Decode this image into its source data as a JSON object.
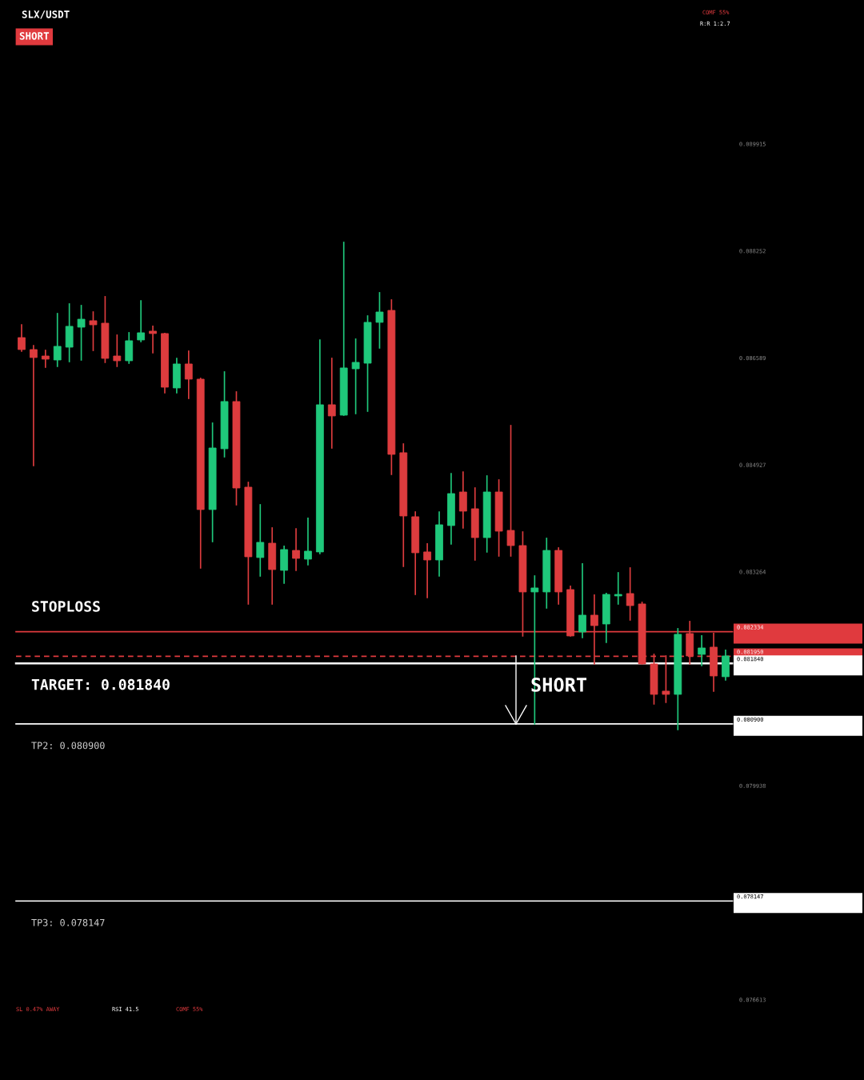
{
  "chart_data": {
    "type": "candlestick",
    "title": "SLX/USDT",
    "categories": [
      null,
      null,
      null,
      null,
      null,
      null,
      null,
      null,
      null,
      null,
      null,
      null,
      null,
      null,
      null,
      null,
      null,
      null,
      null,
      null,
      null,
      null,
      null,
      null,
      null,
      null,
      null,
      null,
      null,
      null,
      null,
      null,
      null,
      null,
      null,
      null,
      null,
      null,
      null,
      null,
      null,
      null,
      null,
      null,
      null,
      null,
      null,
      null,
      null,
      null,
      null,
      null,
      null,
      null,
      null,
      null,
      null,
      null,
      null,
      null
    ],
    "ohlc": [
      [
        0.086905,
        0.087104,
        0.086694,
        0.086719
      ],
      [
        0.086719,
        0.086781,
        0.084916,
        0.086595
      ],
      [
        0.086619,
        0.086706,
        0.086445,
        0.08657
      ],
      [
        0.086557,
        0.087278,
        0.086458,
        0.086769
      ],
      [
        0.086756,
        0.087428,
        0.086532,
        0.08708
      ],
      [
        0.087067,
        0.087403,
        0.086557,
        0.087191
      ],
      [
        0.087167,
        0.087303,
        0.086706,
        0.087104
      ],
      [
        0.087129,
        0.08754,
        0.08652,
        0.086582
      ],
      [
        0.086619,
        0.086943,
        0.086458,
        0.086545
      ],
      [
        0.086545,
        0.08698,
        0.086507,
        0.086856
      ],
      [
        0.086868,
        0.087477,
        0.086843,
        0.08698
      ],
      [
        0.087005,
        0.08708,
        0.086669,
        0.086968
      ],
      [
        0.086968,
        0.086968,
        0.086047,
        0.086134
      ],
      [
        0.086122,
        0.086582,
        0.086047,
        0.086495
      ],
      [
        0.086495,
        0.086694,
        0.08596,
        0.086259
      ],
      [
        0.086259,
        0.086271,
        0.083324,
        0.084232
      ],
      [
        0.084232,
        0.085575,
        0.083734,
        0.085189
      ],
      [
        0.085177,
        0.086371,
        0.085052,
        0.085911
      ],
      [
        0.085911,
        0.08606,
        0.084306,
        0.084567
      ],
      [
        0.08458,
        0.084654,
        0.082764,
        0.083498
      ],
      [
        0.083486,
        0.084306,
        0.083199,
        0.083722
      ],
      [
        0.083709,
        0.083946,
        0.082764,
        0.083299
      ],
      [
        0.083287,
        0.08366,
        0.083088,
        0.08361
      ],
      [
        0.083597,
        0.083933,
        0.083287,
        0.083473
      ],
      [
        0.083461,
        0.084095,
        0.083374,
        0.083585
      ],
      [
        0.083573,
        0.086868,
        0.083548,
        0.085861
      ],
      [
        0.085861,
        0.086582,
        0.085189,
        0.085687
      ],
      [
        0.085699,
        0.088385,
        0.085699,
        0.086433
      ],
      [
        0.08642,
        0.086881,
        0.085724,
        0.08652
      ],
      [
        0.086507,
        0.087241,
        0.085761,
        0.087142
      ],
      [
        0.087142,
        0.087602,
        0.086744,
        0.087303
      ],
      [
        0.087328,
        0.08749,
        0.084779,
        0.08509
      ],
      [
        0.085115,
        0.085251,
        0.083349,
        0.084132
      ],
      [
        0.08412,
        0.084194,
        0.082913,
        0.08356
      ],
      [
        0.083573,
        0.083697,
        0.082864,
        0.083448
      ],
      [
        0.083448,
        0.084194,
        0.083199,
        0.083995
      ],
      [
        0.083983,
        0.084791,
        0.083697,
        0.08448
      ],
      [
        0.084505,
        0.084816,
        0.083946,
        0.084207
      ],
      [
        0.084244,
        0.084567,
        0.083448,
        0.083796
      ],
      [
        0.083796,
        0.084754,
        0.083573,
        0.084505
      ],
      [
        0.084505,
        0.084692,
        0.08351,
        0.083896
      ],
      [
        0.083908,
        0.085537,
        0.08351,
        0.083672
      ],
      [
        0.083672,
        0.083883,
        0.082267,
        0.082951
      ],
      [
        0.082951,
        0.083199,
        0.080899,
        0.083013
      ],
      [
        0.082951,
        0.083784,
        0.082702,
        0.083597
      ],
      [
        0.083597,
        0.083635,
        0.082764,
        0.082951
      ],
      [
        0.082988,
        0.083038,
        0.082267,
        0.082267
      ],
      [
        0.082329,
        0.083386,
        0.082242,
        0.08259
      ],
      [
        0.08259,
        0.082901,
        0.081832,
        0.082428
      ],
      [
        0.082453,
        0.082926,
        0.082167,
        0.082913
      ],
      [
        0.082889,
        0.083249,
        0.082764,
        0.082913
      ],
      [
        0.082926,
        0.083324,
        0.082515,
        0.082739
      ],
      [
        0.082764,
        0.082789,
        0.081832,
        0.081832
      ],
      [
        0.081832,
        0.081981,
        0.08121,
        0.081359
      ],
      [
        0.081409,
        0.081956,
        0.081235,
        0.081359
      ],
      [
        0.081359,
        0.082379,
        0.080812,
        0.082292
      ],
      [
        0.082304,
        0.082491,
        0.081832,
        0.081956
      ],
      [
        0.081981,
        0.082267,
        0.081807,
        0.08208
      ],
      [
        0.082093,
        0.082304,
        0.081409,
        0.081645
      ],
      [
        0.081633,
        0.082043,
        0.081583,
        0.081956
      ]
    ],
    "colors": [
      "#dd3c3e",
      "#dd3c3e",
      "#dd3c3e",
      "#1fc87b",
      "#1fc87b",
      "#1fc87b",
      "#dd3c3e",
      "#dd3c3e",
      "#dd3c3e",
      "#1fc87b",
      "#1fc87b",
      "#dd3c3e",
      "#dd3c3e",
      "#1fc87b",
      "#dd3c3e",
      "#dd3c3e",
      "#1fc87b",
      "#1fc87b",
      "#dd3c3e",
      "#dd3c3e",
      "#1fc87b",
      "#dd3c3e",
      "#1fc87b",
      "#dd3c3e",
      "#1fc87b",
      "#1fc87b",
      "#dd3c3e",
      "#1fc87b",
      "#1fc87b",
      "#1fc87b",
      "#1fc87b",
      "#dd3c3e",
      "#dd3c3e",
      "#dd3c3e",
      "#dd3c3e",
      "#1fc87b",
      "#1fc87b",
      "#dd3c3e",
      "#dd3c3e",
      "#1fc87b",
      "#dd3c3e",
      "#dd3c3e",
      "#dd3c3e",
      "#1fc87b",
      "#1fc87b",
      "#dd3c3e",
      "#dd3c3e",
      "#1fc87b",
      "#dd3c3e",
      "#1fc87b",
      "#1fc87b",
      "#dd3c3e",
      "#dd3c3e",
      "#dd3c3e",
      "#dd3c3e",
      "#1fc87b",
      "#dd3c3e",
      "#1fc87b",
      "#dd3c3e",
      "#1fc87b"
    ],
    "ylim": [
      0.075364,
      0.092153
    ],
    "yticks": [
      {
        "value": 0.089915,
        "label": "0.089915"
      },
      {
        "value": 0.088252,
        "label": "0.088252"
      },
      {
        "value": 0.086589,
        "label": "0.086589"
      },
      {
        "value": 0.084927,
        "label": "0.084927"
      },
      {
        "value": 0.083264,
        "label": "0.083264"
      },
      {
        "value": 0.079938,
        "label": "0.079938"
      },
      {
        "value": 0.076613,
        "label": "0.076613"
      }
    ],
    "tick_labels": "y",
    "ref_lines": [
      {
        "axis": "y",
        "value": 0.082334,
        "label": "STOPLOSS",
        "color": "#e03a3e",
        "line_style": "solid"
      },
      {
        "axis": "y",
        "value": 0.08195,
        "label": null,
        "color": "#e03a3e",
        "line_style": "dashed"
      },
      {
        "axis": "y",
        "value": 0.08184,
        "label": "TARGET: 0.081840",
        "color": "#ffffff",
        "line_style": "solid"
      },
      {
        "axis": "y",
        "value": 0.0809,
        "label": "TP2: 0.080900",
        "color": "#ffffff",
        "line_style": "solid"
      },
      {
        "axis": "y",
        "value": 0.078147,
        "label": "TP3: 0.078147",
        "color": "#ffffff",
        "line_style": "solid"
      }
    ],
    "annotations": [
      "SHORT",
      "COMF 55%",
      "R:R 1:2.7",
      "SHORT",
      "SL 0.47% AWAY",
      "RSI 41.5",
      "COMF 55%",
      "0.082334",
      "0.081950",
      "0.081840",
      "0.080900",
      "0.078147"
    ]
  }
}
